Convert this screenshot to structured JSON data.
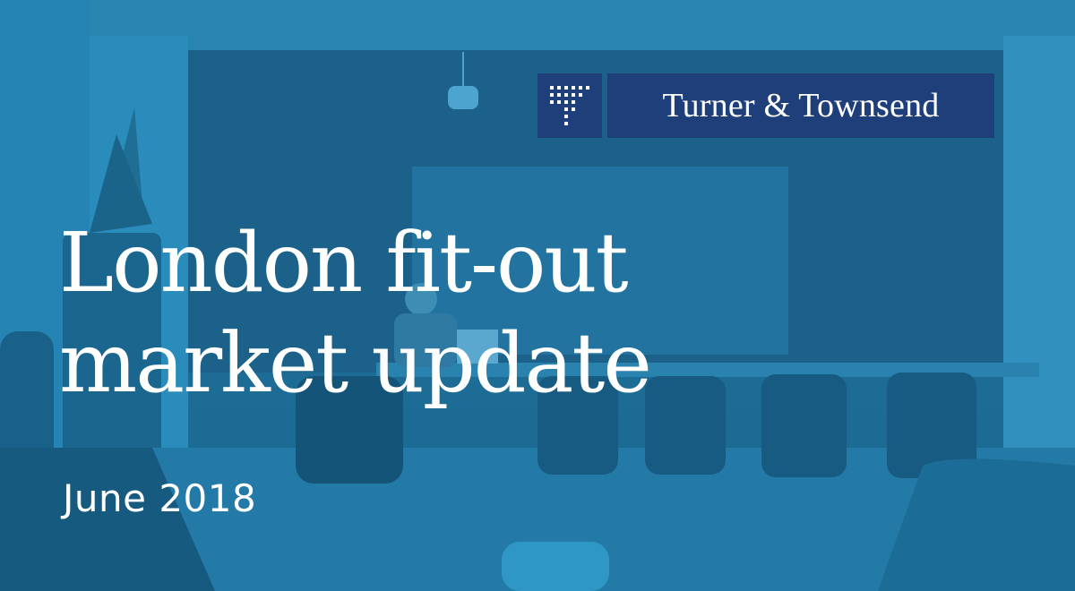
{
  "brand": {
    "name": "Turner & Townsend",
    "mark_icon": "dot-grid-logo-icon",
    "colors": {
      "logo_background": "#1f3f7a",
      "overlay": "#1d6e98",
      "text": "#ffffff"
    }
  },
  "headline": {
    "line1": "London fit-out",
    "line2": "market update"
  },
  "date_label": "June 2018"
}
